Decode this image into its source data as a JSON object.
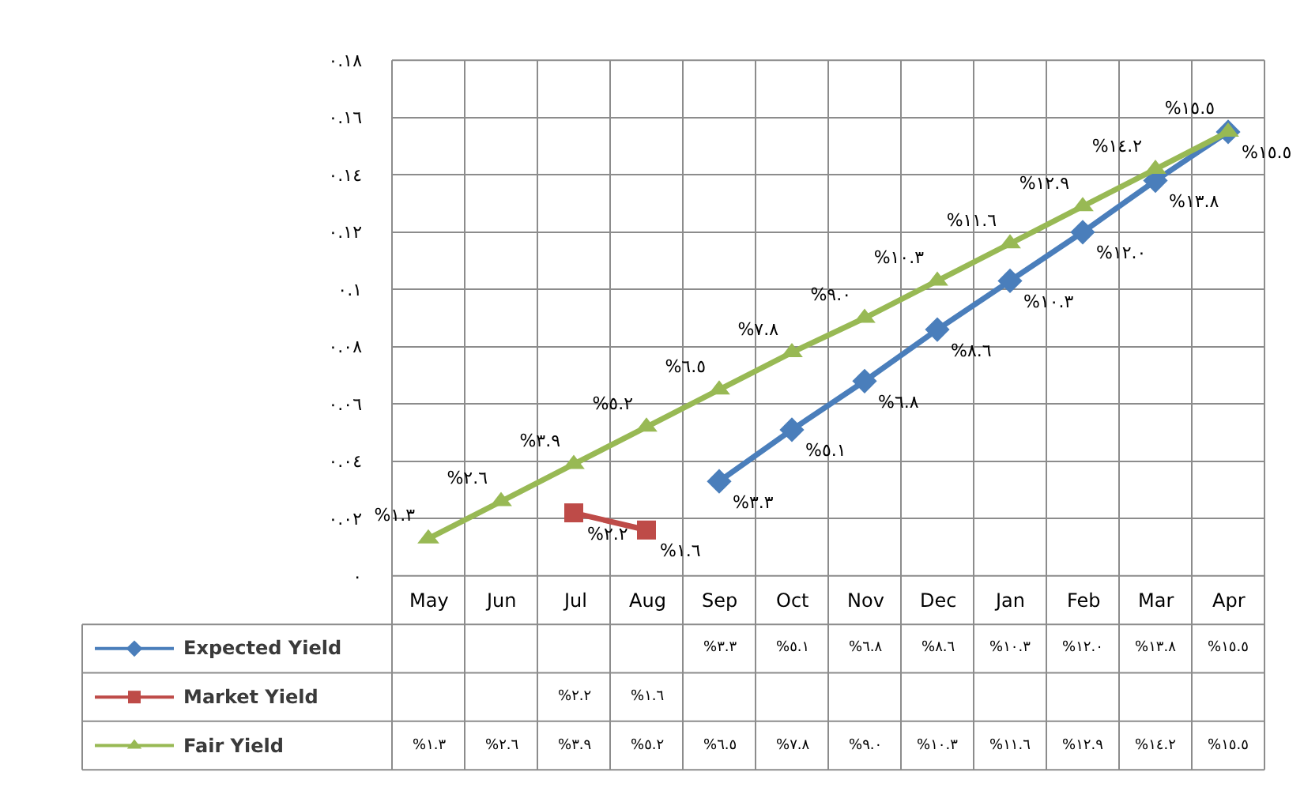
{
  "chart_data": {
    "type": "line",
    "categories": [
      "May",
      "Jun",
      "Jul",
      "Aug",
      "Sep",
      "Oct",
      "Nov",
      "Dec",
      "Jan",
      "Feb",
      "Mar",
      "Apr"
    ],
    "series": [
      {
        "name": "Expected Yield",
        "color": "#4a7ebb",
        "marker": "diamond",
        "values": [
          null,
          null,
          null,
          null,
          0.033,
          0.051,
          0.068,
          0.086,
          0.103,
          0.12,
          0.138,
          0.155
        ],
        "value_labels": [
          null,
          null,
          null,
          null,
          "%٣.٣",
          "%٥.١",
          "%٦.٨",
          "%٨.٦",
          "%١٠.٣",
          "%١٢.٠",
          "%١٣.٨",
          "%١٥.٥"
        ]
      },
      {
        "name": "Market Yield",
        "color": "#be4b48",
        "marker": "square",
        "values": [
          null,
          null,
          0.022,
          0.016,
          null,
          null,
          null,
          null,
          null,
          null,
          null,
          null
        ],
        "value_labels": [
          null,
          null,
          "%٢.٢",
          "%١.٦",
          null,
          null,
          null,
          null,
          null,
          null,
          null,
          null
        ]
      },
      {
        "name": "Fair Yield",
        "color": "#98b954",
        "marker": "triangle",
        "values": [
          0.013,
          0.026,
          0.039,
          0.052,
          0.065,
          0.078,
          0.09,
          0.103,
          0.116,
          0.129,
          0.142,
          0.155
        ],
        "value_labels": [
          "%١.٣",
          "%٢.٦",
          "%٣.٩",
          "%٥.٢",
          "%٦.٥",
          "%٧.٨",
          "%٩.٠",
          "%١٠.٣",
          "%١١.٦",
          "%١٢.٩",
          "%١٤.٢",
          "%١٥.٥"
        ]
      }
    ],
    "ylim": [
      0,
      0.18
    ],
    "yticks": [
      {
        "value": 0,
        "label": "٠"
      },
      {
        "value": 0.02,
        "label": "٠.٠٢"
      },
      {
        "value": 0.04,
        "label": "٠.٠٤"
      },
      {
        "value": 0.06,
        "label": "٠.٠٦"
      },
      {
        "value": 0.08,
        "label": "٠.٠٨"
      },
      {
        "value": 0.1,
        "label": "٠.١"
      },
      {
        "value": 0.12,
        "label": "٠.١٢"
      },
      {
        "value": 0.14,
        "label": "٠.١٤"
      },
      {
        "value": 0.16,
        "label": "٠.١٦"
      },
      {
        "value": 0.18,
        "label": "٠.١٨"
      }
    ],
    "grid": true,
    "line_style": "solid",
    "legend": "bottom"
  }
}
